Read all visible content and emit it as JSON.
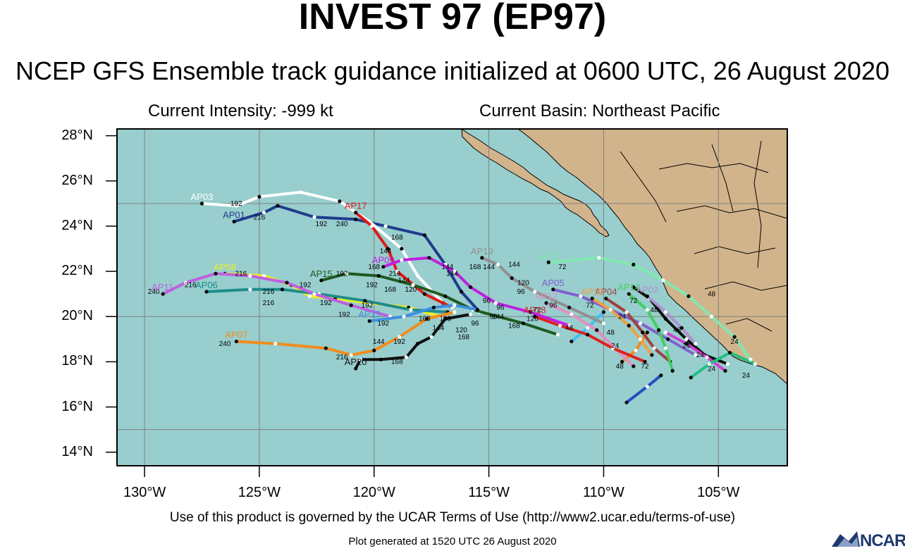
{
  "header": {
    "title": "INVEST 97 (EP97)",
    "subtitle": "NCEP GFS Ensemble track guidance initialized at 0600 UTC, 26 August 2020",
    "intensity": "Current Intensity: -999 kt",
    "basin": "Current Basin: Northeast Pacific"
  },
  "axes": {
    "lat_ticks": [
      "28°N",
      "26°N",
      "24°N",
      "22°N",
      "20°N",
      "18°N",
      "16°N",
      "14°N"
    ],
    "lon_ticks": [
      "130°W",
      "125°W",
      "120°W",
      "115°W",
      "110°W",
      "105°W"
    ],
    "lat_range": [
      13.4,
      28.3
    ],
    "lon_range": [
      131.2,
      102.0
    ],
    "grid_lats": [
      25,
      20,
      15
    ],
    "grid_lons": [
      130,
      125,
      120,
      115,
      110,
      105
    ]
  },
  "colors": {
    "ocean": "#98cece",
    "land": "#d2b48c",
    "grid": "#808080"
  },
  "footer": {
    "terms": "Use of this product is governed by the UCAR Terms of Use (http://www2.ucar.edu/terms-of-use)",
    "generated": "Plot generated at 1520 UTC   26 August 2020",
    "logo": "NCAR"
  },
  "chart_data": {
    "type": "map-tracks",
    "members": [
      {
        "name": "AP01",
        "color": "#203c8c",
        "points": [
          [
            24.2,
            126.1
          ],
          [
            24.6,
            124.8
          ],
          [
            24.9,
            124.2
          ],
          [
            24.4,
            122.6
          ],
          [
            24.3,
            120.8
          ],
          [
            24.0,
            119.5
          ],
          [
            23.6,
            117.8
          ],
          [
            22.3,
            116.9
          ],
          [
            21.1,
            116.2
          ],
          [
            20.2,
            115.4
          ]
        ]
      },
      {
        "name": "AP03",
        "color": "#ffffff",
        "points": [
          [
            25.0,
            127.5
          ],
          [
            24.9,
            126.0
          ],
          [
            25.3,
            125.0
          ],
          [
            25.5,
            123.2
          ],
          [
            25.1,
            121.5
          ],
          [
            24.2,
            120.2
          ],
          [
            23.0,
            118.8
          ],
          [
            21.8,
            118.1
          ],
          [
            20.6,
            117.0
          ]
        ]
      },
      {
        "name": "AP17",
        "color": "#e01a1a",
        "points": [
          [
            24.6,
            120.8
          ],
          [
            24.0,
            120.1
          ],
          [
            23.0,
            119.4
          ],
          [
            22.0,
            119.0
          ],
          [
            21.0,
            117.8
          ],
          [
            20.4,
            116.6
          ]
        ]
      },
      {
        "name": "AP15",
        "color": "#1e5a1e",
        "points": [
          [
            21.6,
            122.3
          ],
          [
            21.9,
            121.2
          ],
          [
            21.8,
            119.8
          ],
          [
            21.4,
            118.3
          ],
          [
            20.9,
            116.9
          ],
          [
            20.3,
            115.7
          ],
          [
            19.7,
            113.5
          ],
          [
            19.2,
            112.0
          ]
        ]
      },
      {
        "name": "AP09",
        "color": "#c020e0",
        "points": [
          [
            22.2,
            119.6
          ],
          [
            22.5,
            118.8
          ],
          [
            22.6,
            117.6
          ],
          [
            22.0,
            116.5
          ],
          [
            21.3,
            115.8
          ],
          [
            20.6,
            114.7
          ],
          [
            20.2,
            113.2
          ],
          [
            19.6,
            111.5
          ]
        ]
      },
      {
        "name": "AP08",
        "color": "#f0f020",
        "points": [
          [
            21.9,
            126.5
          ],
          [
            21.8,
            124.8
          ],
          [
            21.4,
            123.6
          ],
          [
            20.9,
            122.8
          ],
          [
            20.8,
            121.7
          ],
          [
            20.6,
            120.2
          ],
          [
            20.4,
            118.5
          ],
          [
            20.0,
            117.1
          ]
        ]
      },
      {
        "name": "AP06",
        "color": "#1e8c8c",
        "points": [
          [
            21.1,
            127.3
          ],
          [
            21.2,
            125.4
          ],
          [
            21.2,
            124.0
          ],
          [
            21.0,
            122.4
          ],
          [
            20.7,
            120.4
          ],
          [
            20.3,
            118.4
          ],
          [
            20.2,
            116.8
          ]
        ]
      },
      {
        "name": "AP11",
        "color": "#c060e0",
        "points": [
          [
            21.0,
            129.2
          ],
          [
            21.5,
            128.2
          ],
          [
            21.9,
            126.9
          ],
          [
            21.8,
            125.4
          ],
          [
            21.5,
            123.8
          ],
          [
            21.0,
            122.6
          ],
          [
            20.5,
            121.0
          ],
          [
            20.0,
            119.3
          ]
        ]
      },
      {
        "name": "AP13",
        "color": "#3c90e0",
        "points": [
          [
            19.8,
            120.2
          ],
          [
            20.0,
            118.7
          ],
          [
            20.4,
            117.4
          ],
          [
            20.5,
            116.5
          ],
          [
            20.3,
            115.5
          ]
        ]
      },
      {
        "name": "AP07",
        "color": "#f08c1e",
        "points": [
          [
            18.9,
            126.0
          ],
          [
            18.8,
            124.3
          ],
          [
            18.6,
            122.1
          ],
          [
            18.3,
            121.0
          ],
          [
            18.5,
            120.0
          ],
          [
            19.1,
            118.9
          ],
          [
            19.9,
            117.7
          ],
          [
            20.2,
            116.5
          ]
        ]
      },
      {
        "name": "AP20",
        "color": "#101010",
        "points": [
          [
            17.7,
            120.8
          ],
          [
            18.1,
            120.6
          ],
          [
            18.1,
            119.7
          ],
          [
            18.2,
            118.6
          ],
          [
            18.8,
            118.1
          ],
          [
            19.1,
            117.5
          ],
          [
            19.9,
            116.9
          ],
          [
            20.1,
            115.8
          ]
        ]
      },
      {
        "name": "AP19",
        "color": "#909090",
        "points": [
          [
            22.6,
            115.3
          ],
          [
            22.3,
            114.6
          ],
          [
            21.7,
            114.0
          ],
          [
            21.1,
            113.0
          ],
          [
            20.4,
            111.5
          ],
          [
            19.7,
            110.0
          ]
        ]
      },
      {
        "name": "AP16",
        "color": "#80e8b0",
        "points": [
          [
            22.4,
            112.4
          ],
          [
            22.6,
            110.2
          ],
          [
            22.3,
            108.7
          ],
          [
            21.6,
            107.4
          ],
          [
            20.9,
            106.3
          ],
          [
            20.0,
            105.3
          ],
          [
            19.1,
            104.3
          ],
          [
            18.1,
            103.6
          ]
        ]
      },
      {
        "name": "AP05",
        "color": "#8060d0",
        "points": [
          [
            21.2,
            112.2
          ],
          [
            20.9,
            111.0
          ],
          [
            20.3,
            109.7
          ],
          [
            19.7,
            108.4
          ],
          [
            19.0,
            107.2
          ],
          [
            18.3,
            106.0
          ]
        ]
      },
      {
        "name": "AP04",
        "color": "#a04040",
        "points": [
          [
            20.8,
            109.9
          ],
          [
            20.2,
            109.0
          ],
          [
            19.3,
            108.3
          ],
          [
            18.6,
            107.8
          ],
          [
            18.0,
            107.1
          ]
        ]
      },
      {
        "name": "AP14",
        "color": "#40d060",
        "points": [
          [
            21.0,
            108.9
          ],
          [
            20.3,
            108.1
          ],
          [
            19.4,
            107.6
          ],
          [
            18.6,
            107.3
          ],
          [
            17.6,
            107.0
          ]
        ]
      },
      {
        "name": "AP02",
        "color": "#b090d0",
        "points": [
          [
            20.9,
            108.1
          ],
          [
            20.2,
            107.3
          ],
          [
            19.5,
            106.6
          ],
          [
            18.8,
            106.0
          ]
        ]
      },
      {
        "name": "AP10",
        "color": "#f0a040",
        "points": [
          [
            20.8,
            110.5
          ],
          [
            20.3,
            109.7
          ],
          [
            19.6,
            108.9
          ],
          [
            19.0,
            108.4
          ],
          [
            18.3,
            107.9
          ]
        ]
      },
      {
        "name": "AP12",
        "color": "#e090c0",
        "points": [
          [
            20.6,
            112.5
          ],
          [
            20.1,
            111.4
          ],
          [
            19.4,
            110.3
          ],
          [
            18.6,
            109.5
          ],
          [
            17.8,
            108.7
          ]
        ]
      },
      {
        "name": "AP18",
        "color": "#e02020",
        "points": [
          [
            20.0,
            113.0
          ],
          [
            19.6,
            111.9
          ],
          [
            19.2,
            110.7
          ],
          [
            18.6,
            109.6
          ],
          [
            18.0,
            108.2
          ]
        ]
      }
    ],
    "extra_tracks": [
      {
        "color": "#101010",
        "points": [
          [
            21.3,
            108.7
          ],
          [
            20.8,
            108.0
          ],
          [
            19.9,
            107.3
          ],
          [
            19.0,
            106.4
          ],
          [
            18.3,
            105.6
          ],
          [
            17.9,
            104.6
          ]
        ]
      },
      {
        "color": "#2050c0",
        "points": [
          [
            16.2,
            109.0
          ],
          [
            16.9,
            108.1
          ],
          [
            17.4,
            107.5
          ]
        ]
      },
      {
        "color": "#f08c1e",
        "points": [
          [
            18.0,
            109.2
          ],
          [
            18.5,
            108.6
          ],
          [
            19.3,
            108.1
          ]
        ]
      },
      {
        "color": "#40c0f0",
        "points": [
          [
            18.9,
            111.4
          ],
          [
            19.5,
            110.7
          ],
          [
            20.2,
            110.0
          ]
        ]
      },
      {
        "color": "#d040d0",
        "points": [
          [
            17.6,
            104.7
          ],
          [
            18.2,
            105.5
          ],
          [
            18.8,
            106.4
          ],
          [
            19.3,
            107.3
          ]
        ]
      },
      {
        "color": "#20c080",
        "points": [
          [
            17.3,
            106.2
          ],
          [
            17.9,
            105.4
          ],
          [
            18.4,
            104.5
          ],
          [
            17.9,
            103.4
          ]
        ]
      }
    ],
    "hour_labels": [
      {
        "text": "192",
        "lat": 24.9,
        "lon": 126.0
      },
      {
        "text": "216",
        "lat": 24.3,
        "lon": 125.0
      },
      {
        "text": "192",
        "lat": 24.0,
        "lon": 122.3
      },
      {
        "text": "240",
        "lat": 24.0,
        "lon": 121.4
      },
      {
        "text": "168",
        "lat": 23.4,
        "lon": 119.0
      },
      {
        "text": "144",
        "lat": 22.8,
        "lon": 119.5
      },
      {
        "text": "168",
        "lat": 22.1,
        "lon": 120.0
      },
      {
        "text": "216",
        "lat": 21.8,
        "lon": 119.1
      },
      {
        "text": "192",
        "lat": 21.8,
        "lon": 121.4
      },
      {
        "text": "144",
        "lat": 21.5,
        "lon": 118.7
      },
      {
        "text": "192",
        "lat": 21.3,
        "lon": 120.1
      },
      {
        "text": "168",
        "lat": 21.1,
        "lon": 119.3
      },
      {
        "text": "120",
        "lat": 21.1,
        "lon": 118.4
      },
      {
        "text": "216",
        "lat": 21.8,
        "lon": 125.8
      },
      {
        "text": "216",
        "lat": 21.0,
        "lon": 124.6
      },
      {
        "text": "216",
        "lat": 20.5,
        "lon": 124.6
      },
      {
        "text": "216",
        "lat": 21.3,
        "lon": 128.0
      },
      {
        "text": "240",
        "lat": 21.0,
        "lon": 129.6
      },
      {
        "text": "192",
        "lat": 21.3,
        "lon": 123.0
      },
      {
        "text": "192",
        "lat": 20.5,
        "lon": 122.1
      },
      {
        "text": "192",
        "lat": 20.0,
        "lon": 121.3
      },
      {
        "text": "192",
        "lat": 20.4,
        "lon": 120.3
      },
      {
        "text": "192",
        "lat": 19.6,
        "lon": 119.6
      },
      {
        "text": "168",
        "lat": 19.8,
        "lon": 117.8
      },
      {
        "text": "168",
        "lat": 19.8,
        "lon": 116.9
      },
      {
        "text": "144",
        "lat": 19.4,
        "lon": 117.2
      },
      {
        "text": "120",
        "lat": 19.3,
        "lon": 116.2
      },
      {
        "text": "168",
        "lat": 19.0,
        "lon": 116.1
      },
      {
        "text": "144",
        "lat": 18.8,
        "lon": 119.8
      },
      {
        "text": "192",
        "lat": 18.8,
        "lon": 118.9
      },
      {
        "text": "216",
        "lat": 18.1,
        "lon": 121.4
      },
      {
        "text": "168",
        "lat": 17.9,
        "lon": 119.0
      },
      {
        "text": "240",
        "lat": 18.7,
        "lon": 126.5
      },
      {
        "text": "144",
        "lat": 22.1,
        "lon": 116.8
      },
      {
        "text": "144",
        "lat": 21.8,
        "lon": 116.6
      },
      {
        "text": "168",
        "lat": 22.1,
        "lon": 115.6
      },
      {
        "text": "144",
        "lat": 22.1,
        "lon": 115.0
      },
      {
        "text": "144",
        "lat": 22.2,
        "lon": 113.9
      },
      {
        "text": "72",
        "lat": 22.1,
        "lon": 111.8
      },
      {
        "text": "120",
        "lat": 21.4,
        "lon": 113.5
      },
      {
        "text": "96",
        "lat": 21.0,
        "lon": 113.6
      },
      {
        "text": "96",
        "lat": 20.4,
        "lon": 112.2
      },
      {
        "text": "72",
        "lat": 20.4,
        "lon": 110.6
      },
      {
        "text": "48",
        "lat": 19.4,
        "lon": 111.5
      },
      {
        "text": "48",
        "lat": 19.2,
        "lon": 109.7
      },
      {
        "text": "24",
        "lat": 19.9,
        "lon": 109.2
      },
      {
        "text": "24",
        "lat": 18.6,
        "lon": 109.5
      },
      {
        "text": "48",
        "lat": 17.7,
        "lon": 109.3
      },
      {
        "text": "72",
        "lat": 17.7,
        "lon": 108.2
      },
      {
        "text": "48",
        "lat": 20.9,
        "lon": 105.3
      },
      {
        "text": "48",
        "lat": 20.2,
        "lon": 107.8
      },
      {
        "text": "48",
        "lat": 19.3,
        "lon": 106.8
      },
      {
        "text": "24",
        "lat": 18.6,
        "lon": 106.4
      },
      {
        "text": "24",
        "lat": 18.2,
        "lon": 105.8
      },
      {
        "text": "24",
        "lat": 18.8,
        "lon": 104.3
      },
      {
        "text": "24",
        "lat": 17.6,
        "lon": 105.3
      },
      {
        "text": "24",
        "lat": 17.3,
        "lon": 103.8
      },
      {
        "text": "72",
        "lat": 20.6,
        "lon": 108.7
      },
      {
        "text": "96",
        "lat": 20.6,
        "lon": 115.1
      },
      {
        "text": "96",
        "lat": 20.3,
        "lon": 114.5
      },
      {
        "text": "96",
        "lat": 19.9,
        "lon": 114.8
      },
      {
        "text": "144",
        "lat": 19.9,
        "lon": 114.6
      },
      {
        "text": "168",
        "lat": 19.5,
        "lon": 113.9
      },
      {
        "text": "120",
        "lat": 19.8,
        "lon": 113.1
      },
      {
        "text": "96",
        "lat": 19.6,
        "lon": 115.6
      },
      {
        "text": "72",
        "lat": 20.2,
        "lon": 112.9
      }
    ]
  }
}
